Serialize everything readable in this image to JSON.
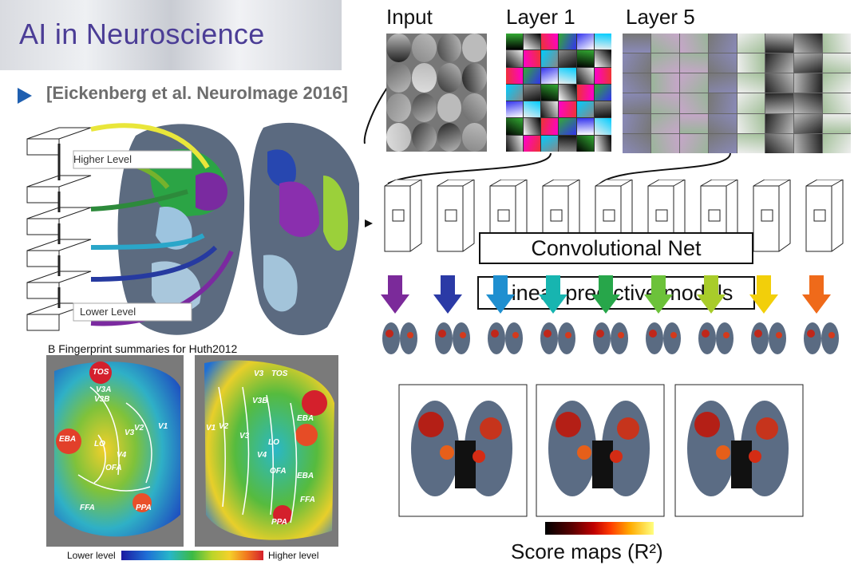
{
  "header": {
    "title": "AI in Neuroscience",
    "citation": "[Eickenberg et al. NeuroImage 2016]"
  },
  "cnn_figure": {
    "input_label": "Input",
    "layer1_label": "Layer 1",
    "layer5_label": "Layer 5",
    "conv_net_label": "Convolutional Net",
    "linear_models_label": "Linear predictive models",
    "score_maps_label": "Score maps (R²)",
    "arrow_colors": [
      "#7b2a9a",
      "#2b3aa6",
      "#1f8fd0",
      "#17b5b0",
      "#27a64a",
      "#6cc23a",
      "#a8cc2a",
      "#f2cf0a",
      "#ef6a1a"
    ]
  },
  "hierarchy_figure": {
    "higher_level": "Higher Level",
    "lower_level": "Lower Level"
  },
  "fingerprint": {
    "title": "B Fingerprint summaries for Huth2012",
    "low_label": "Lower level",
    "high_label": "Higher level",
    "regions_left": [
      "TOS",
      "V3A",
      "V3B",
      "V2",
      "V1",
      "EBA",
      "LO",
      "V3",
      "V4",
      "OFA",
      "FFA",
      "PPA"
    ],
    "regions_right": [
      "V3",
      "TOS",
      "V3B",
      "EBA",
      "V1",
      "V2",
      "V3",
      "LO",
      "V4",
      "OFA",
      "EBA",
      "FFA",
      "PPA"
    ]
  }
}
